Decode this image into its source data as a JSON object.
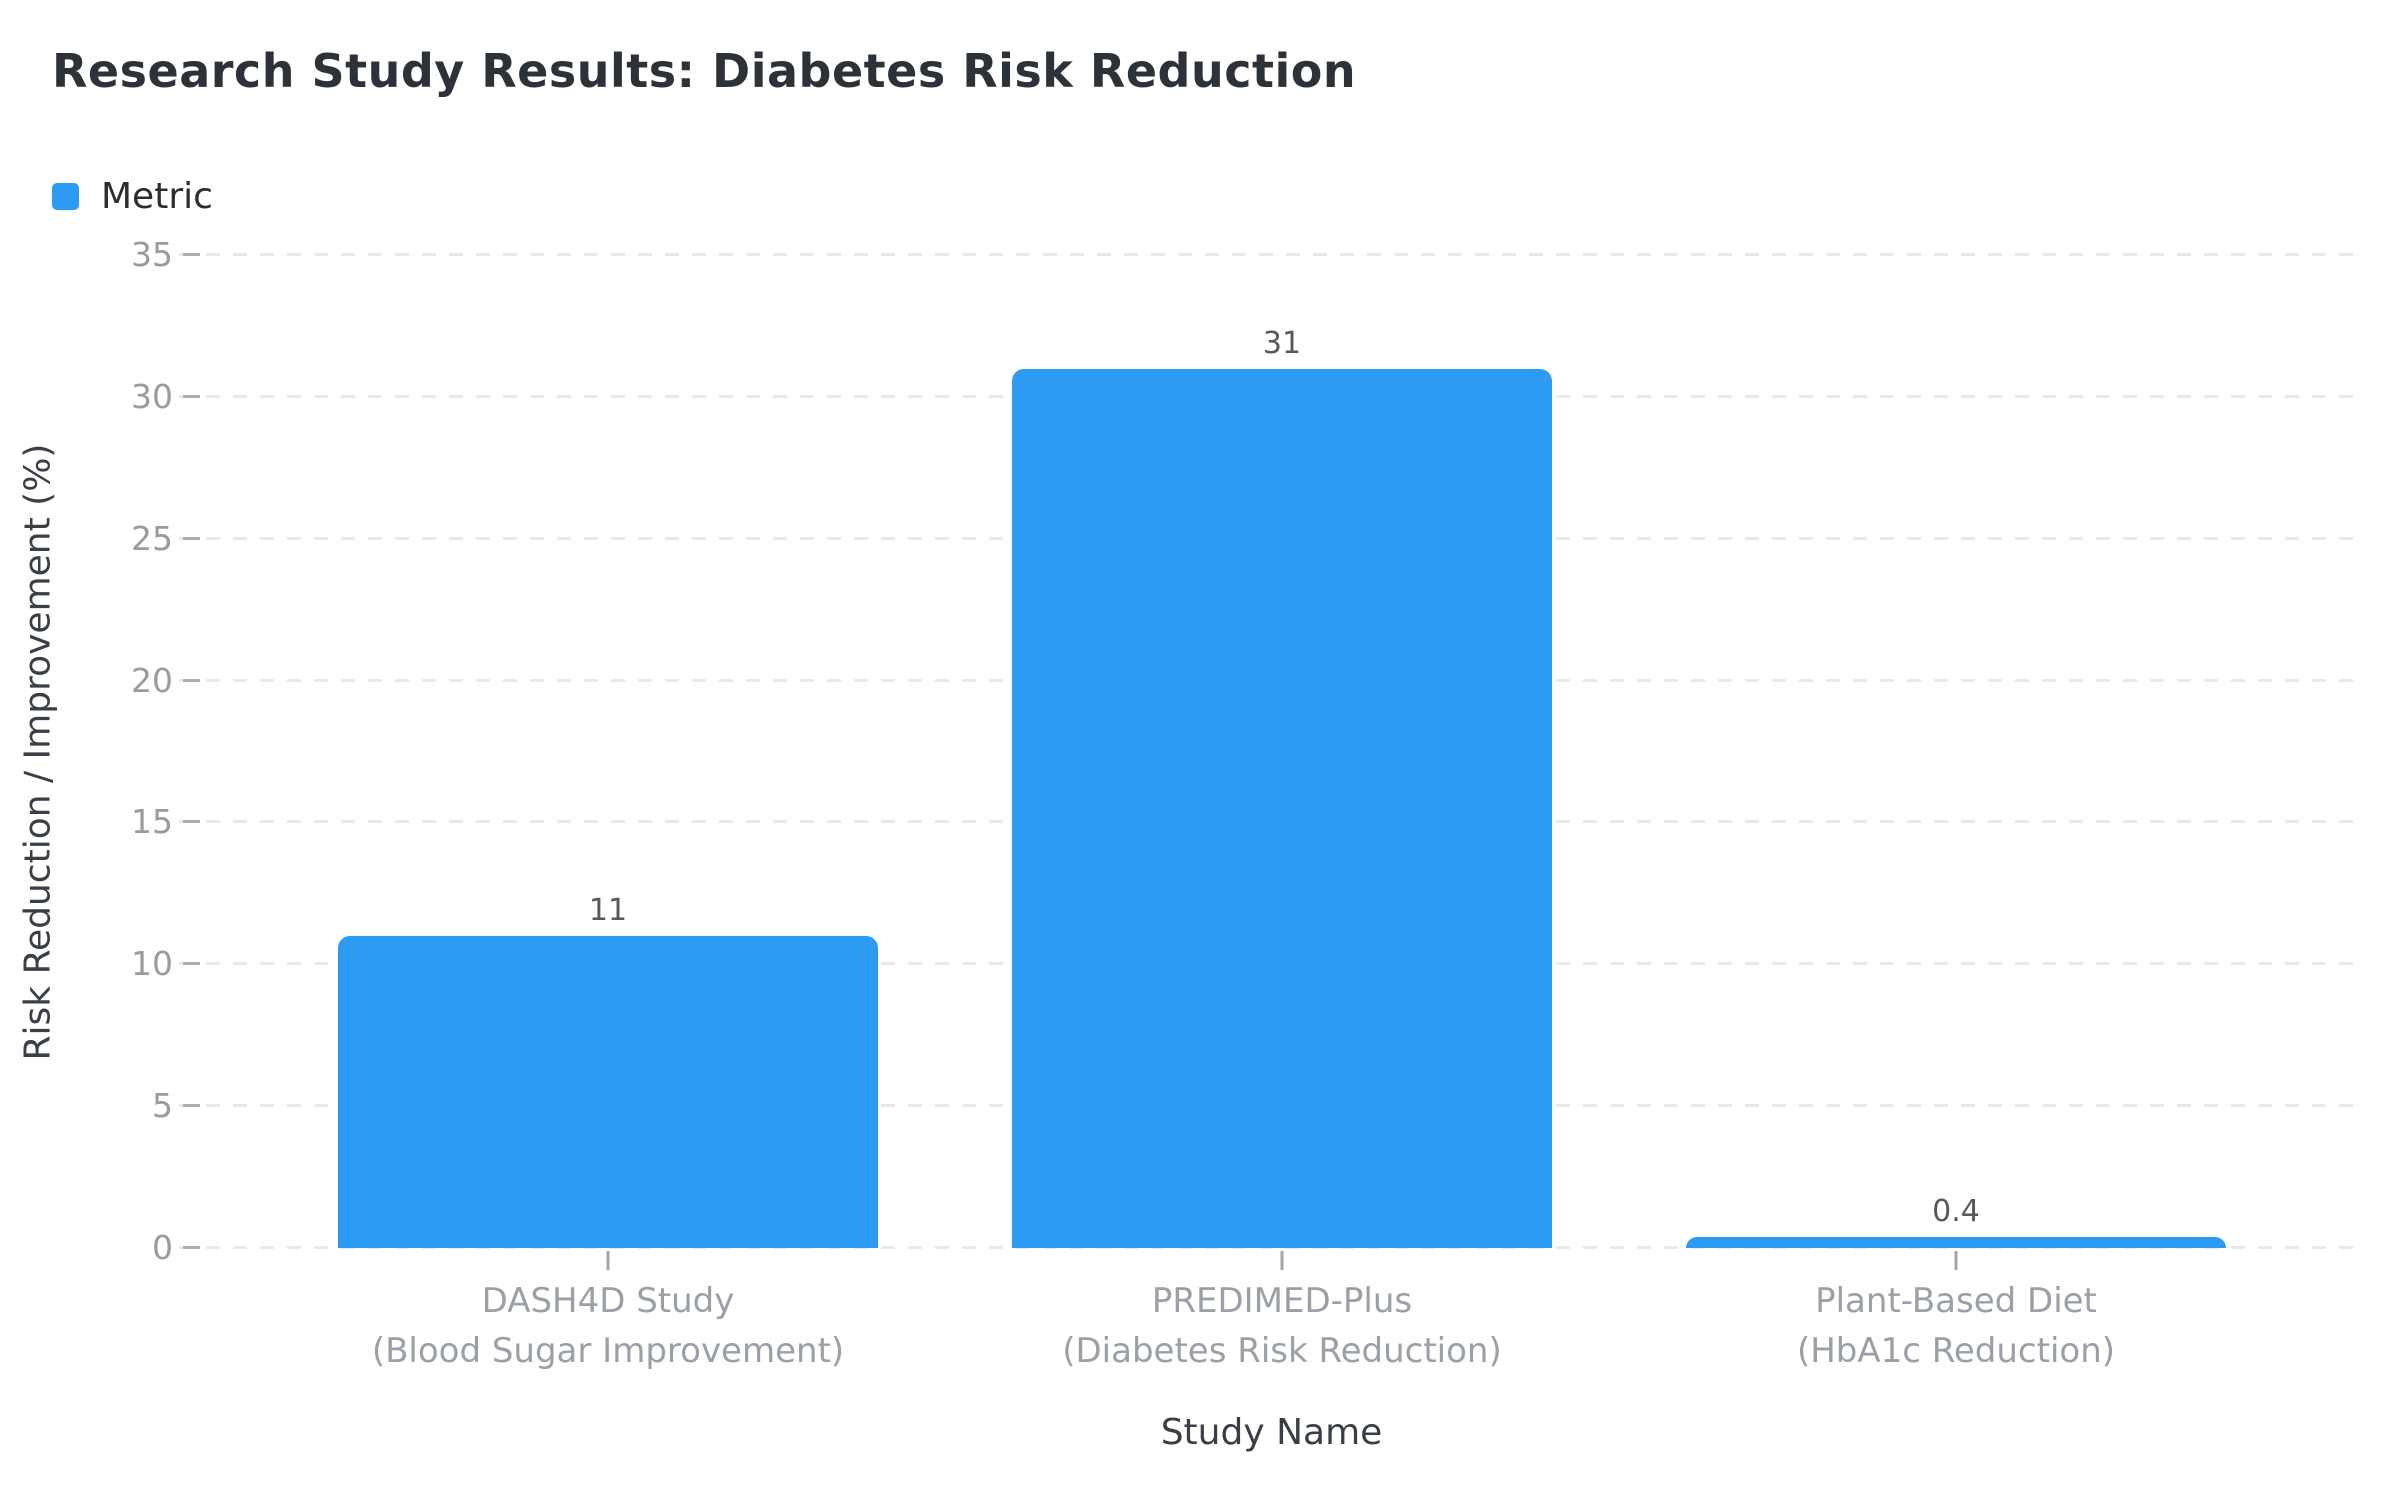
{
  "title": "Research Study Results: Diabetes Risk Reduction",
  "legend": {
    "items": [
      {
        "label": "Metric",
        "color": "#2d9af3"
      }
    ]
  },
  "colors": {
    "bar": "#2d9af3",
    "title_text": "#2d3238",
    "axis_title_text": "#3a3f45",
    "tick_text": "#9b9b9b",
    "value_label_text": "#55595e",
    "gridline": "#e7e9ec",
    "background": "#ffffff"
  },
  "chart_data": {
    "type": "bar",
    "title": "Research Study Results: Diabetes Risk Reduction",
    "series_name": "Metric",
    "categories": [
      "DASH4D Study\n(Blood Sugar Improvement)",
      "PREDIMED-Plus\n(Diabetes Risk Reduction)",
      "Plant-Based Diet\n(HbA1c Reduction)"
    ],
    "values": [
      11,
      31,
      0.4
    ],
    "value_labels": [
      "11",
      "31",
      "0.4"
    ],
    "xlabel": "Study Name",
    "ylabel": "Risk Reduction / Improvement (%)",
    "ylim": [
      0,
      35
    ],
    "yticks": [
      0,
      5,
      10,
      15,
      20,
      25,
      30,
      35
    ],
    "grid": "horizontal dashed",
    "legend_position": "top-left",
    "bar_color": "#2d9af3",
    "background": "#ffffff"
  }
}
